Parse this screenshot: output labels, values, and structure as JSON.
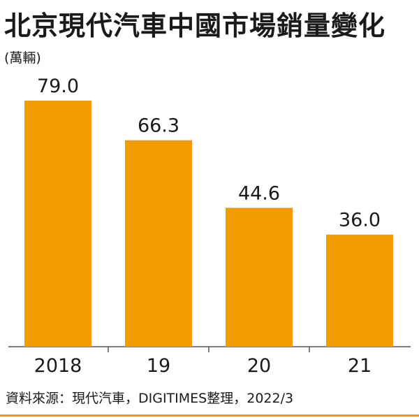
{
  "title": "北京現代汽車中國市場銷量變化",
  "unit": "(萬輛)",
  "source": "資料來源：現代汽車，DIGITIMES整理，2022/3",
  "colors": {
    "bar": "#f39c00",
    "accent_rule": "#f39c00",
    "axis": "#555555",
    "text": "#1a1a1a"
  },
  "chart_data": {
    "type": "bar",
    "categories": [
      "2018",
      "19",
      "20",
      "21"
    ],
    "values": [
      79.0,
      66.3,
      44.6,
      36.0
    ],
    "value_labels": [
      "79.0",
      "66.3",
      "44.6",
      "36.0"
    ],
    "ylim": [
      0,
      79
    ],
    "grid": false,
    "legend": "none"
  }
}
